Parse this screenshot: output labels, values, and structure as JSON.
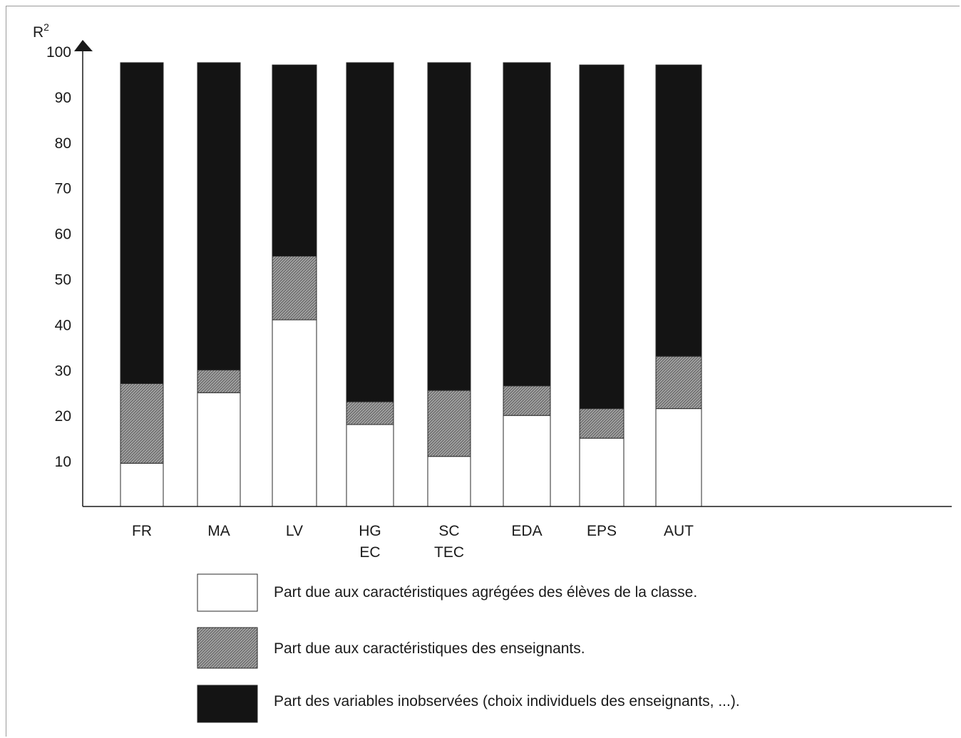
{
  "chart_data": {
    "type": "bar",
    "stacked": true,
    "ylabel": "R",
    "ylabel_sup": "2",
    "ylim": [
      0,
      100
    ],
    "yticks": [
      "10",
      "20",
      "30",
      "40",
      "50",
      "60",
      "70",
      "80",
      "90",
      "100"
    ],
    "categories": [
      [
        "FR"
      ],
      [
        "MA"
      ],
      [
        "LV"
      ],
      [
        "HG",
        "EC"
      ],
      [
        "SC",
        "TEC"
      ],
      [
        "EDA"
      ],
      [
        "EPS"
      ],
      [
        "AUT"
      ]
    ],
    "series": [
      {
        "name": "Part due aux caractéristiques agrégées des élèves de la classe.",
        "values": [
          9.5,
          25,
          41,
          18,
          11,
          20,
          15,
          21.5
        ]
      },
      {
        "name": "Part due aux caractéristiques des enseignants.",
        "values": [
          17.5,
          5,
          14,
          5,
          14.5,
          6.5,
          6.5,
          11.5
        ]
      },
      {
        "name": "Part des variables inobservées (choix individuels des enseignants, ...).",
        "values": [
          70.5,
          67.5,
          42,
          74.5,
          72,
          71,
          75.5,
          64
        ]
      }
    ],
    "colors": [
      "#ffffff",
      "#8f8f8f",
      "#141414"
    ],
    "legend_position": "bottom",
    "grid": false
  }
}
